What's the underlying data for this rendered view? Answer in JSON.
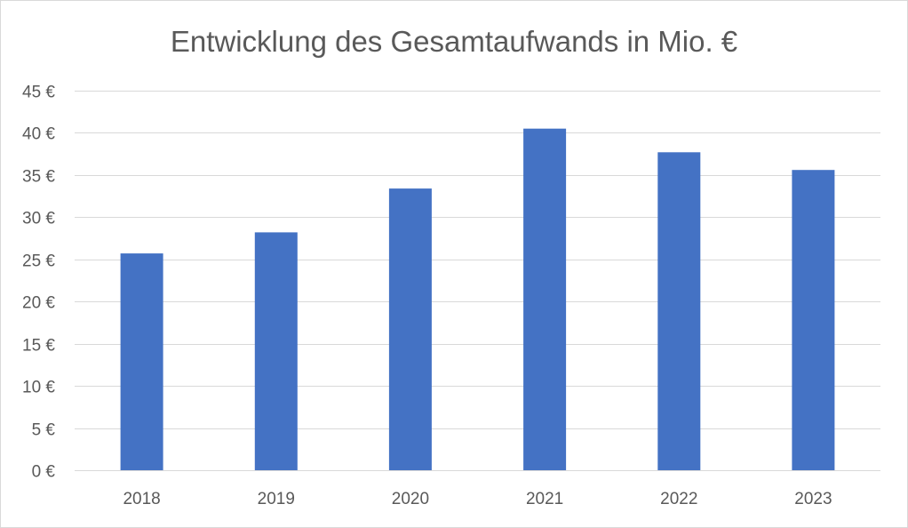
{
  "chart_data": {
    "type": "bar",
    "title": "Entwicklung des Gesamtaufwands in Mio. €",
    "xlabel": "",
    "ylabel": "",
    "categories": [
      "2018",
      "2019",
      "2020",
      "2021",
      "2022",
      "2023"
    ],
    "values": [
      25.7,
      28.2,
      33.4,
      40.5,
      37.7,
      35.6
    ],
    "ylim": [
      0,
      45
    ],
    "yticks": [
      0,
      5,
      10,
      15,
      20,
      25,
      30,
      35,
      40,
      45
    ],
    "ytick_labels": [
      "0 €",
      "5 €",
      "10 €",
      "15 €",
      "20 €",
      "25 €",
      "30 €",
      "35 €",
      "40 €",
      "45 €"
    ],
    "grid": true,
    "legend": "none",
    "bar_color": "#4472C4",
    "grid_color": "#d9d9d9"
  }
}
